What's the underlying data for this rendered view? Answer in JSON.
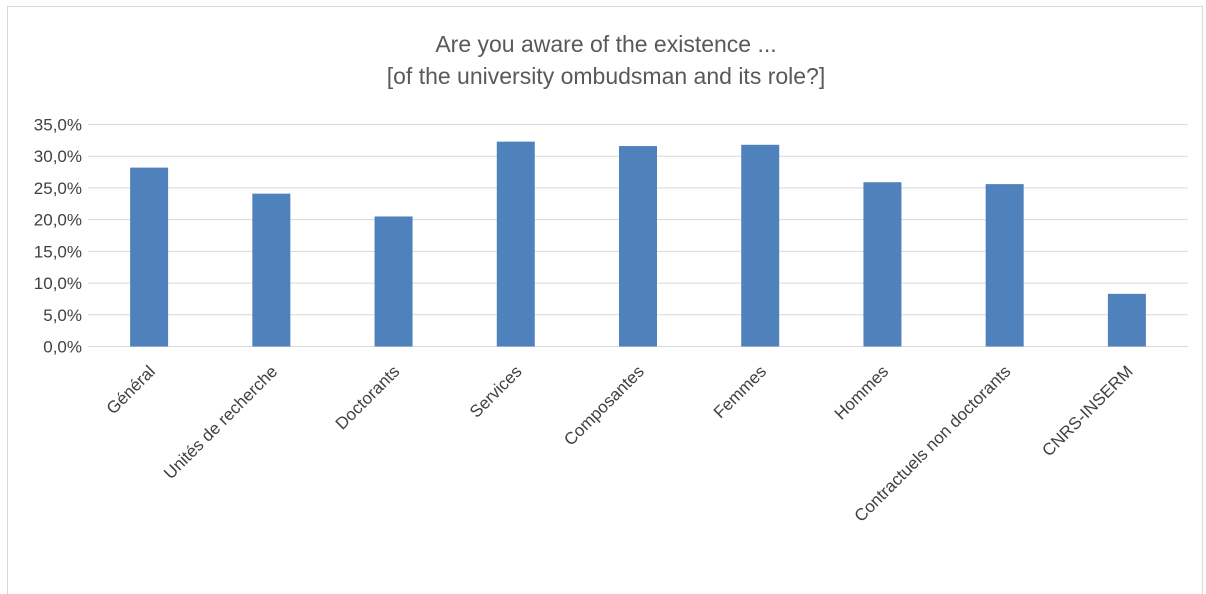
{
  "chart_data": {
    "type": "bar",
    "title": [
      "Are you aware of the existence ...",
      "[of the university ombudsman and its role?]"
    ],
    "categories": [
      "Général",
      "Unités de recherche",
      "Doctorants",
      "Services",
      "Composantes",
      "Femmes",
      "Hommes",
      "Contractuels non doctorants",
      "CNRS-INSERM"
    ],
    "values": [
      28.2,
      24.1,
      20.5,
      32.3,
      31.6,
      31.8,
      25.9,
      25.6,
      8.3
    ],
    "ylim": [
      0,
      35
    ],
    "yticks": [
      "0,0%",
      "5,0%",
      "10,0%",
      "15,0%",
      "20,0%",
      "25,0%",
      "30,0%",
      "35,0%"
    ],
    "ytick_values": [
      0,
      5,
      10,
      15,
      20,
      25,
      30,
      35
    ],
    "grid": true,
    "legend": "none",
    "colors": {
      "bar": "#4f81bd",
      "grid": "#d9d9d9",
      "text": "#404040",
      "title": "#595959"
    }
  }
}
